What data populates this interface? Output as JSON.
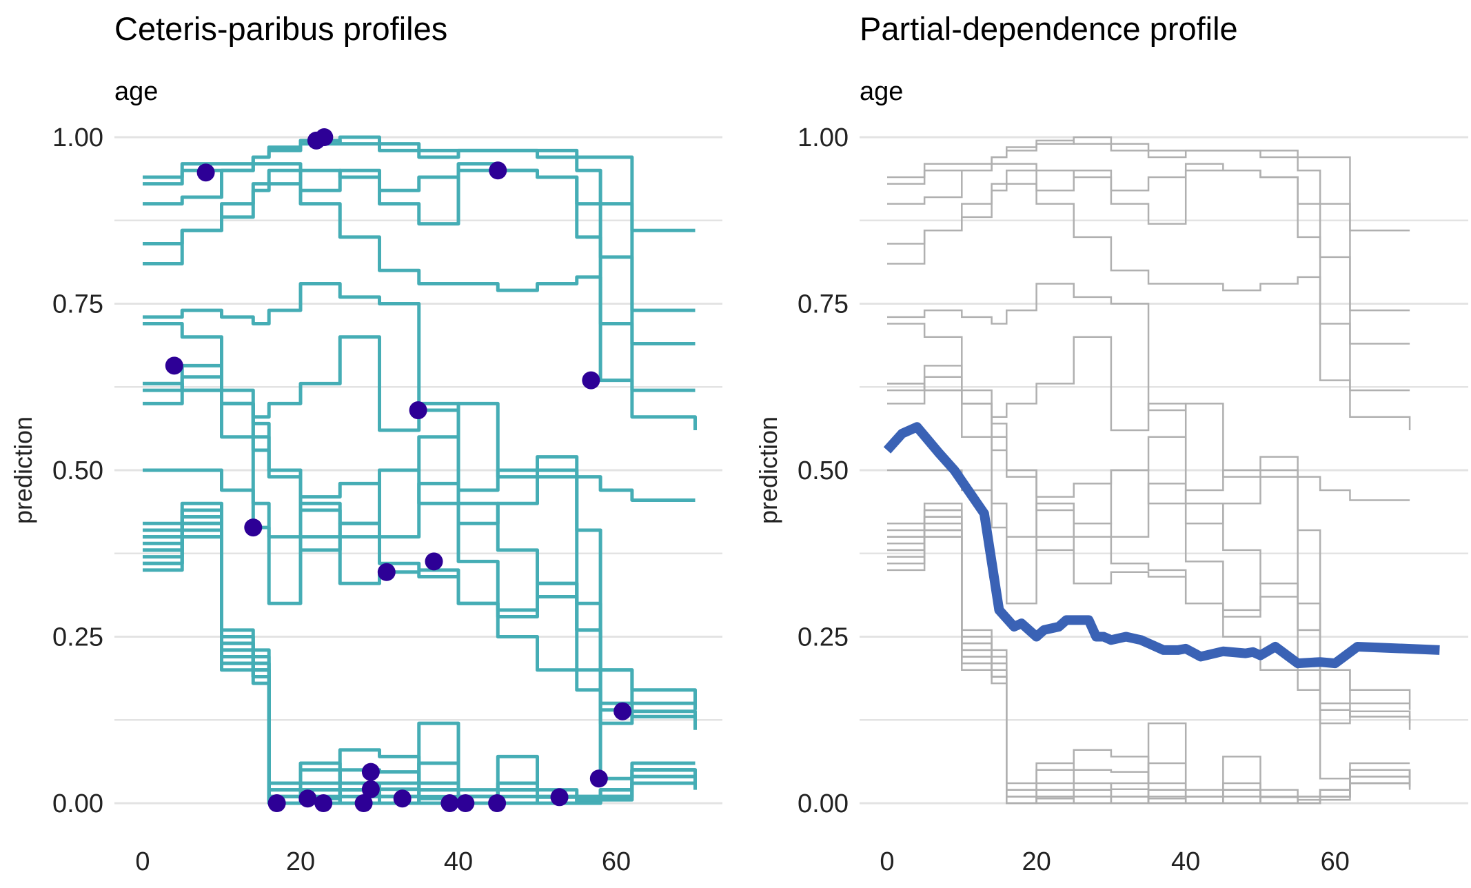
{
  "chart_data": [
    {
      "type": "line",
      "title": "Ceteris-paribus profiles",
      "subtitle": "age",
      "xlabel": "",
      "ylabel": "prediction",
      "xlim": [
        0,
        74
      ],
      "ylim": [
        0,
        1
      ],
      "xticks": [
        "0",
        "20",
        "40",
        "60"
      ],
      "yticks": [
        "0.00",
        "0.25",
        "0.50",
        "0.75",
        "1.00"
      ],
      "grid": true,
      "line_color": "#45adb5",
      "point_color": "#2d0096",
      "x_grid": [
        0,
        5,
        10,
        14,
        16,
        20,
        25,
        30,
        35,
        40,
        45,
        50,
        55,
        58,
        62,
        70
      ],
      "profiles": [
        [
          0.93,
          0.96,
          0.96,
          0.97,
          0.98,
          0.99,
          1.0,
          0.99,
          0.98,
          0.98,
          0.98,
          0.98,
          0.97,
          0.97,
          0.86,
          0.86
        ],
        [
          0.94,
          0.95,
          0.95,
          0.97,
          0.985,
          0.995,
          0.99,
          0.98,
          0.97,
          0.98,
          0.98,
          0.97,
          0.95,
          0.9,
          0.74,
          0.74
        ],
        [
          0.9,
          0.91,
          0.95,
          0.96,
          0.96,
          0.95,
          0.94,
          0.92,
          0.94,
          0.96,
          0.95,
          0.94,
          0.9,
          0.82,
          0.69,
          0.69
        ],
        [
          0.84,
          0.86,
          0.9,
          0.93,
          0.95,
          0.92,
          0.95,
          0.9,
          0.87,
          0.95,
          0.95,
          0.94,
          0.85,
          0.72,
          0.62,
          0.62
        ],
        [
          0.81,
          0.86,
          0.88,
          0.92,
          0.93,
          0.9,
          0.85,
          0.8,
          0.78,
          0.78,
          0.77,
          0.78,
          0.79,
          0.635,
          0.58,
          0.56
        ],
        [
          0.62,
          0.657,
          0.6,
          0.53,
          0.49,
          0.44,
          0.4,
          0.36,
          0.35,
          0.3,
          0.25,
          0.2,
          0.17,
          0.15,
          0.15,
          0.15
        ],
        [
          0.73,
          0.74,
          0.73,
          0.72,
          0.74,
          0.78,
          0.76,
          0.75,
          0.59,
          0.6,
          0.49,
          0.49,
          0.49,
          0.47,
          0.455,
          0.455
        ],
        [
          0.63,
          0.62,
          0.55,
          0.414,
          0.4,
          0.38,
          0.42,
          0.5,
          0.55,
          0.45,
          0.38,
          0.33,
          0.2,
          0.14,
          0.13,
          0.12
        ],
        [
          0.72,
          0.7,
          0.62,
          0.55,
          0.5,
          0.4,
          0.33,
          0.347,
          0.34,
          0.3,
          0.28,
          0.33,
          0.26,
          0.2,
          0.17,
          0.14
        ],
        [
          0.6,
          0.64,
          0.6,
          0.58,
          0.6,
          0.63,
          0.7,
          0.56,
          0.6,
          0.363,
          0.29,
          0.31,
          0.26,
          0.2,
          0.13,
          0.11
        ],
        [
          0.63,
          0.62,
          0.6,
          0.57,
          0.5,
          0.46,
          0.48,
          0.5,
          0.45,
          0.47,
          0.5,
          0.52,
          0.3,
          0.12,
          0.138,
          0.13
        ],
        [
          0.5,
          0.5,
          0.47,
          0.45,
          0.3,
          0.45,
          0.42,
          0.4,
          0.48,
          0.42,
          0.45,
          0.5,
          0.41,
          0.037,
          0.06,
          0.06
        ],
        [
          0.4,
          0.42,
          0.25,
          0.22,
          0.0,
          0.0,
          0.01,
          0.0,
          0.0,
          0.0,
          0.0,
          0.0,
          0.0,
          0.01,
          0.05,
          0.03
        ],
        [
          0.38,
          0.43,
          0.24,
          0.21,
          0.01,
          0.02,
          0.05,
          0.047,
          0.03,
          0.01,
          0.02,
          0.01,
          0.0,
          0.01,
          0.04,
          0.03
        ],
        [
          0.42,
          0.45,
          0.23,
          0.2,
          0.02,
          0.05,
          0.03,
          0.021,
          0.02,
          0.01,
          0.03,
          0.01,
          0.01,
          0.02,
          0.05,
          0.04
        ],
        [
          0.36,
          0.41,
          0.22,
          0.19,
          0.01,
          0.007,
          0.02,
          0.01,
          0.06,
          0.02,
          0.07,
          0.02,
          0.01,
          0.01,
          0.03,
          0.025
        ],
        [
          0.35,
          0.4,
          0.21,
          0.19,
          0.0,
          0.01,
          0.0,
          0.0,
          0.01,
          0.0,
          0.01,
          0.0,
          0.0,
          0.005,
          0.03,
          0.02
        ],
        [
          0.39,
          0.43,
          0.22,
          0.2,
          0.03,
          0.06,
          0.0,
          0.0,
          0.02,
          0.0,
          0.0,
          0.0,
          0.0,
          0.01,
          0.04,
          0.03
        ],
        [
          0.4,
          0.44,
          0.26,
          0.23,
          0.02,
          0.03,
          0.08,
          0.07,
          0.007,
          0.01,
          0.02,
          0.01,
          0.01,
          0.02,
          0.05,
          0.04
        ],
        [
          0.37,
          0.41,
          0.2,
          0.18,
          0.0,
          0.02,
          0.01,
          0.01,
          0.0,
          0.0,
          0.01,
          0.0,
          0.0,
          0.01,
          0.03,
          0.025
        ],
        [
          0.41,
          0.44,
          0.24,
          0.21,
          0.01,
          0.01,
          0.0,
          0.01,
          0.0,
          0.0,
          0.0,
          0.01,
          0.005,
          0.01,
          0.04,
          0.03
        ],
        [
          0.38,
          0.42,
          0.23,
          0.2,
          0.01,
          0.0,
          0.02,
          0.03,
          0.12,
          0.01,
          0.0,
          0.0,
          0.01,
          0.02,
          0.05,
          0.035
        ],
        [
          0.36,
          0.4,
          0.21,
          0.19,
          0.0,
          0.01,
          0.02,
          0.01,
          0.0,
          0.01,
          0.02,
          0.009,
          0.01,
          0.01,
          0.03,
          0.03
        ]
      ],
      "observations": [
        {
          "x": 8,
          "y": 0.947
        },
        {
          "x": 22,
          "y": 0.995
        },
        {
          "x": 23,
          "y": 1.0
        },
        {
          "x": 45,
          "y": 0.95
        },
        {
          "x": 4,
          "y": 0.657
        },
        {
          "x": 56.8,
          "y": 0.635
        },
        {
          "x": 34.9,
          "y": 0.59
        },
        {
          "x": 14,
          "y": 0.414
        },
        {
          "x": 30.9,
          "y": 0.347
        },
        {
          "x": 36.9,
          "y": 0.363
        },
        {
          "x": 60.8,
          "y": 0.138
        },
        {
          "x": 57.8,
          "y": 0.037
        },
        {
          "x": 28.9,
          "y": 0.047
        },
        {
          "x": 28.9,
          "y": 0.021
        },
        {
          "x": 17,
          "y": 0.0
        },
        {
          "x": 20.9,
          "y": 0.007
        },
        {
          "x": 22.9,
          "y": 0.0
        },
        {
          "x": 28,
          "y": 0.0
        },
        {
          "x": 32.9,
          "y": 0.007
        },
        {
          "x": 38.9,
          "y": 0.0
        },
        {
          "x": 40.9,
          "y": 0.0
        },
        {
          "x": 44.9,
          "y": 0.0
        },
        {
          "x": 52.8,
          "y": 0.009
        }
      ]
    },
    {
      "type": "line",
      "title": "Partial-dependence profile",
      "subtitle": "age",
      "xlabel": "",
      "ylabel": "prediction",
      "xlim": [
        0,
        74
      ],
      "ylim": [
        0,
        1
      ],
      "xticks": [
        "0",
        "20",
        "40",
        "60"
      ],
      "yticks": [
        "0.00",
        "0.25",
        "0.50",
        "0.75",
        "1.00"
      ],
      "grid": true,
      "background_color": "#b0b0b0",
      "line_color": "#3a62b5",
      "pd": [
        [
          0,
          0.53
        ],
        [
          2,
          0.555
        ],
        [
          4,
          0.565
        ],
        [
          7,
          0.525
        ],
        [
          9,
          0.5
        ],
        [
          13,
          0.435
        ],
        [
          15,
          0.29
        ],
        [
          17,
          0.265
        ],
        [
          18,
          0.27
        ],
        [
          20,
          0.25
        ],
        [
          21,
          0.26
        ],
        [
          23,
          0.265
        ],
        [
          24,
          0.275
        ],
        [
          27,
          0.275
        ],
        [
          28,
          0.25
        ],
        [
          29,
          0.25
        ],
        [
          30,
          0.245
        ],
        [
          32,
          0.25
        ],
        [
          34,
          0.245
        ],
        [
          35,
          0.24
        ],
        [
          37,
          0.23
        ],
        [
          39,
          0.23
        ],
        [
          40,
          0.232
        ],
        [
          42,
          0.22
        ],
        [
          45,
          0.228
        ],
        [
          48,
          0.225
        ],
        [
          49,
          0.227
        ],
        [
          50,
          0.222
        ],
        [
          52,
          0.235
        ],
        [
          55,
          0.21
        ],
        [
          58,
          0.212
        ],
        [
          60,
          0.21
        ],
        [
          63,
          0.235
        ],
        [
          74,
          0.23
        ]
      ]
    }
  ]
}
